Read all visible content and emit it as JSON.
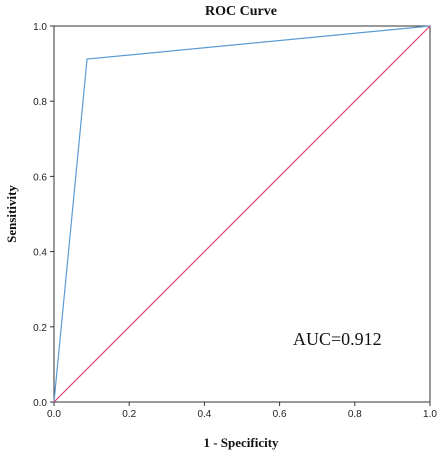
{
  "chart_data": {
    "type": "line",
    "title": "ROC Curve",
    "xlabel": "1 - Specificity",
    "ylabel": "Sensitivity",
    "xlim": [
      0.0,
      1.0
    ],
    "ylim": [
      0.0,
      1.0
    ],
    "xticks": [
      "0.0",
      "0.2",
      "0.4",
      "0.6",
      "0.8",
      "1.0"
    ],
    "yticks": [
      "0.0",
      "0.2",
      "0.4",
      "0.6",
      "0.8",
      "1.0"
    ],
    "grid": false,
    "series": [
      {
        "color": "#5b9bd5",
        "x": [
          0.0,
          0.088,
          1.0
        ],
        "y": [
          0.0,
          0.912,
          1.0
        ]
      },
      {
        "color": "#e0407a",
        "x": [
          0.0,
          1.0
        ],
        "y": [
          0.0,
          1.0
        ]
      }
    ],
    "annotation": "AUC=0.912"
  }
}
